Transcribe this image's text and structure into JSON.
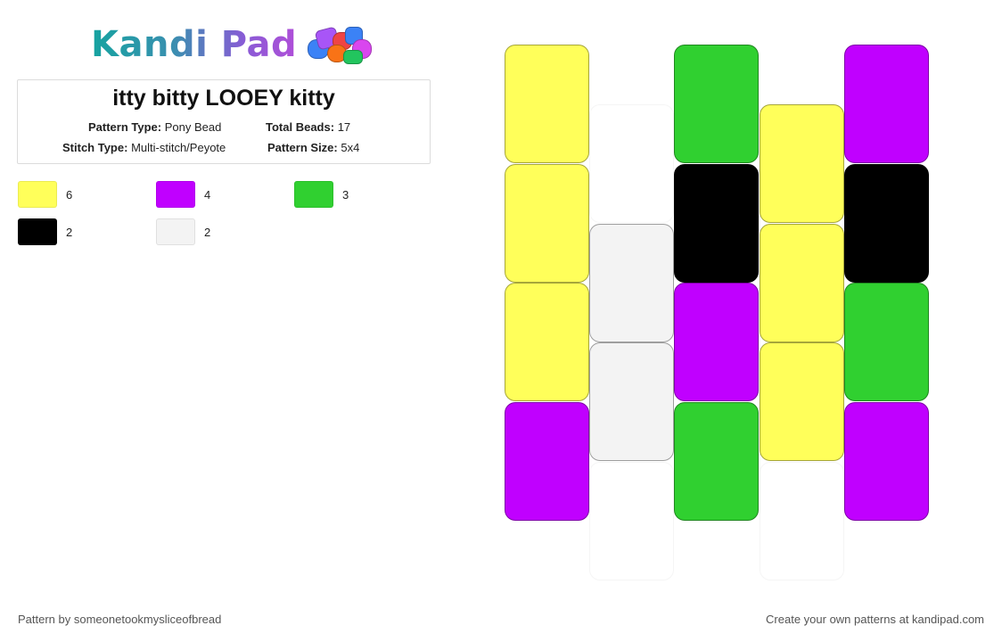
{
  "logo": {
    "text": "Kandi Pad",
    "icon": "bead-pile-icon"
  },
  "pattern": {
    "title": "itty bitty LOOEY kitty",
    "type_label": "Pattern Type:",
    "type_value": "Pony Bead",
    "total_label": "Total Beads:",
    "total_value": "17",
    "stitch_label": "Stitch Type:",
    "stitch_value": "Multi-stitch/Peyote",
    "size_label": "Pattern Size:",
    "size_value": "5x4"
  },
  "legend": [
    {
      "color": "#ffff5a",
      "count": "6"
    },
    {
      "color": "#c000ff",
      "count": "4"
    },
    {
      "color": "#30d030",
      "count": "3"
    },
    {
      "color": "#000000",
      "count": "2"
    },
    {
      "color": "#f3f3f3",
      "count": "2"
    }
  ],
  "grid": {
    "columns": [
      [
        "#ffff5a",
        "#ffff5a",
        "#ffff5a",
        "#c000ff"
      ],
      [
        "#ffffff",
        "#f3f3f3",
        "#f3f3f3",
        "#ffffff"
      ],
      [
        "#30d030",
        "#000000",
        "#c000ff",
        "#30d030"
      ],
      [
        "#ffff5a",
        "#ffff5a",
        "#ffff5a",
        "#ffffff"
      ],
      [
        "#c000ff",
        "#000000",
        "#30d030",
        "#c000ff"
      ]
    ],
    "empty_color": "#ffffff"
  },
  "footer": {
    "author": "Pattern by someonetookmysliceofbread",
    "promo": "Create your own patterns at kandipad.com"
  }
}
